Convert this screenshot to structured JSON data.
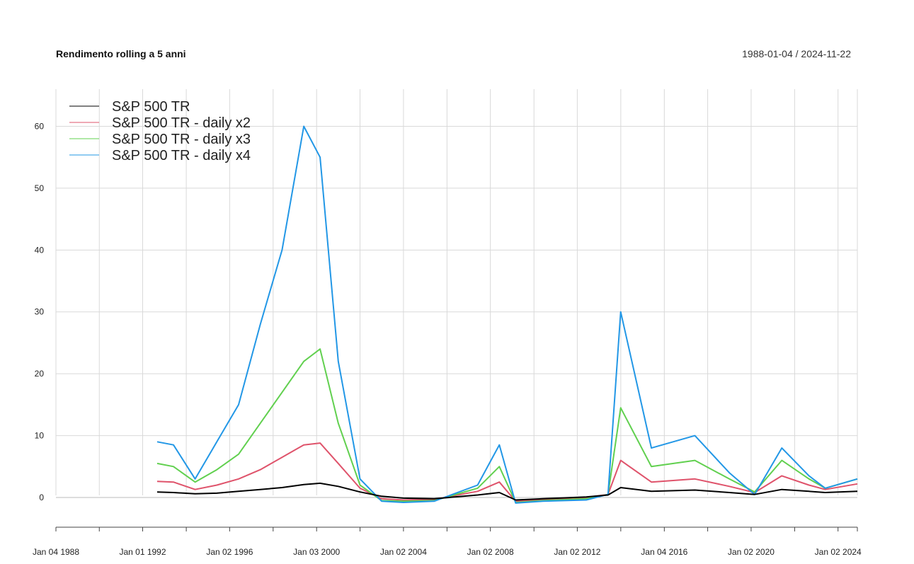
{
  "title": "Rendimento rolling a 5 anni",
  "date_range": "1988-01-04 / 2024-11-22",
  "chart_data": {
    "type": "line",
    "title": "Rendimento rolling a 5 anni",
    "xlabel": "",
    "ylabel": "",
    "x_range": [
      "1988-01-04",
      "2024-11-22"
    ],
    "ylim": [
      -4,
      66
    ],
    "grid": true,
    "legend_position": "top-left",
    "y_ticks": [
      0,
      10,
      20,
      30,
      40,
      50,
      60
    ],
    "x_tick_labels": [
      {
        "date": "1988-01-04",
        "label": "Jan 04 1988"
      },
      {
        "date": "1992-01-01",
        "label": "Jan 01 1992"
      },
      {
        "date": "1996-01-02",
        "label": "Jan 02 1996"
      },
      {
        "date": "2000-01-03",
        "label": "Jan 03 2000"
      },
      {
        "date": "2004-01-02",
        "label": "Jan 02 2004"
      },
      {
        "date": "2008-01-02",
        "label": "Jan 02 2008"
      },
      {
        "date": "2012-01-02",
        "label": "Jan 02 2012"
      },
      {
        "date": "2016-01-04",
        "label": "Jan 04 2016"
      },
      {
        "date": "2020-01-02",
        "label": "Jan 02 2020"
      },
      {
        "date": "2024-01-02",
        "label": "Jan 02 2024"
      }
    ],
    "x_minor_ticks": [
      "1990-01-02",
      "1994-01-03",
      "1998-01-02",
      "2002-01-02",
      "2006-01-03",
      "2010-01-04",
      "2014-01-02",
      "2018-01-02",
      "2022-01-03"
    ],
    "series": [
      {
        "name": "S&P 500 TR",
        "color": "#000000",
        "x": [
          "1992-09-01",
          "1993-06-01",
          "1994-06-01",
          "1995-06-01",
          "1996-06-01",
          "1997-06-01",
          "1998-06-01",
          "1999-06-01",
          "2000-03-01",
          "2001-01-01",
          "2002-01-01",
          "2003-01-01",
          "2004-01-01",
          "2005-06-01",
          "2007-06-01",
          "2008-06-01",
          "2009-03-01",
          "2010-06-01",
          "2012-06-01",
          "2013-06-01",
          "2014-01-01",
          "2015-06-01",
          "2017-06-01",
          "2019-01-01",
          "2020-03-01",
          "2021-06-01",
          "2022-09-01",
          "2023-06-01",
          "2024-11-22"
        ],
        "values": [
          0.9,
          0.8,
          0.6,
          0.7,
          1.0,
          1.3,
          1.6,
          2.1,
          2.3,
          1.8,
          0.9,
          0.2,
          -0.1,
          -0.2,
          0.4,
          0.8,
          -0.4,
          -0.2,
          0.1,
          0.4,
          1.6,
          1.0,
          1.2,
          0.8,
          0.5,
          1.3,
          1.0,
          0.8,
          1.0
        ]
      },
      {
        "name": "S&P 500 TR - daily x2",
        "color": "#DF536B",
        "x": [
          "1992-09-01",
          "1993-06-01",
          "1994-06-01",
          "1995-06-01",
          "1996-06-01",
          "1997-06-01",
          "1998-06-01",
          "1999-06-01",
          "2000-03-01",
          "2001-01-01",
          "2002-01-01",
          "2003-01-01",
          "2004-01-01",
          "2005-06-01",
          "2007-06-01",
          "2008-06-01",
          "2009-03-01",
          "2010-06-01",
          "2012-06-01",
          "2013-06-01",
          "2014-01-01",
          "2015-06-01",
          "2017-06-01",
          "2019-01-01",
          "2020-03-01",
          "2021-06-01",
          "2022-09-01",
          "2023-06-01",
          "2024-11-22"
        ],
        "values": [
          2.6,
          2.5,
          1.3,
          2.0,
          3.0,
          4.5,
          6.5,
          8.5,
          8.8,
          5.5,
          1.5,
          -0.2,
          -0.4,
          -0.3,
          1.0,
          2.5,
          -0.6,
          -0.3,
          0.0,
          0.5,
          6.0,
          2.5,
          3.0,
          1.8,
          0.8,
          3.5,
          2.0,
          1.3,
          2.2
        ]
      },
      {
        "name": "S&P 500 TR - daily x3",
        "color": "#61D04F",
        "x": [
          "1992-09-01",
          "1993-06-01",
          "1994-06-01",
          "1995-06-01",
          "1996-06-01",
          "1997-06-01",
          "1998-06-01",
          "1999-06-01",
          "2000-03-01",
          "2001-01-01",
          "2002-01-01",
          "2003-01-01",
          "2004-01-01",
          "2005-06-01",
          "2007-06-01",
          "2008-06-01",
          "2009-03-01",
          "2010-06-01",
          "2012-06-01",
          "2013-06-01",
          "2014-01-01",
          "2015-06-01",
          "2017-06-01",
          "2019-01-01",
          "2020-03-01",
          "2021-06-01",
          "2022-09-01",
          "2023-06-01",
          "2024-11-22"
        ],
        "values": [
          5.5,
          5.0,
          2.5,
          4.5,
          7.0,
          12.0,
          17.0,
          22.0,
          24.0,
          12.0,
          2.0,
          -0.5,
          -0.6,
          -0.5,
          1.5,
          5.0,
          -0.8,
          -0.5,
          -0.2,
          0.5,
          14.5,
          5.0,
          6.0,
          3.0,
          0.9,
          6.0,
          3.0,
          1.5,
          3.0
        ]
      },
      {
        "name": "S&P 500 TR - daily x4",
        "color": "#2297E6",
        "x": [
          "1992-09-01",
          "1993-06-01",
          "1994-06-01",
          "1995-06-01",
          "1996-06-01",
          "1997-06-01",
          "1998-06-01",
          "1999-06-01",
          "2000-03-01",
          "2001-01-01",
          "2002-01-01",
          "2003-01-01",
          "2004-01-01",
          "2005-06-01",
          "2007-06-01",
          "2008-06-01",
          "2009-03-01",
          "2010-06-01",
          "2012-06-01",
          "2013-06-01",
          "2014-01-01",
          "2015-06-01",
          "2017-06-01",
          "2019-01-01",
          "2020-03-01",
          "2021-06-01",
          "2022-09-01",
          "2023-06-01",
          "2024-11-22"
        ],
        "values": [
          9.0,
          8.5,
          3.0,
          9.0,
          15.0,
          28.0,
          40.0,
          60.0,
          55.0,
          22.0,
          3.0,
          -0.6,
          -0.8,
          -0.6,
          2.0,
          8.5,
          -0.9,
          -0.6,
          -0.4,
          0.5,
          30.0,
          8.0,
          10.0,
          4.0,
          0.5,
          8.0,
          3.5,
          1.5,
          3.0
        ]
      }
    ]
  }
}
